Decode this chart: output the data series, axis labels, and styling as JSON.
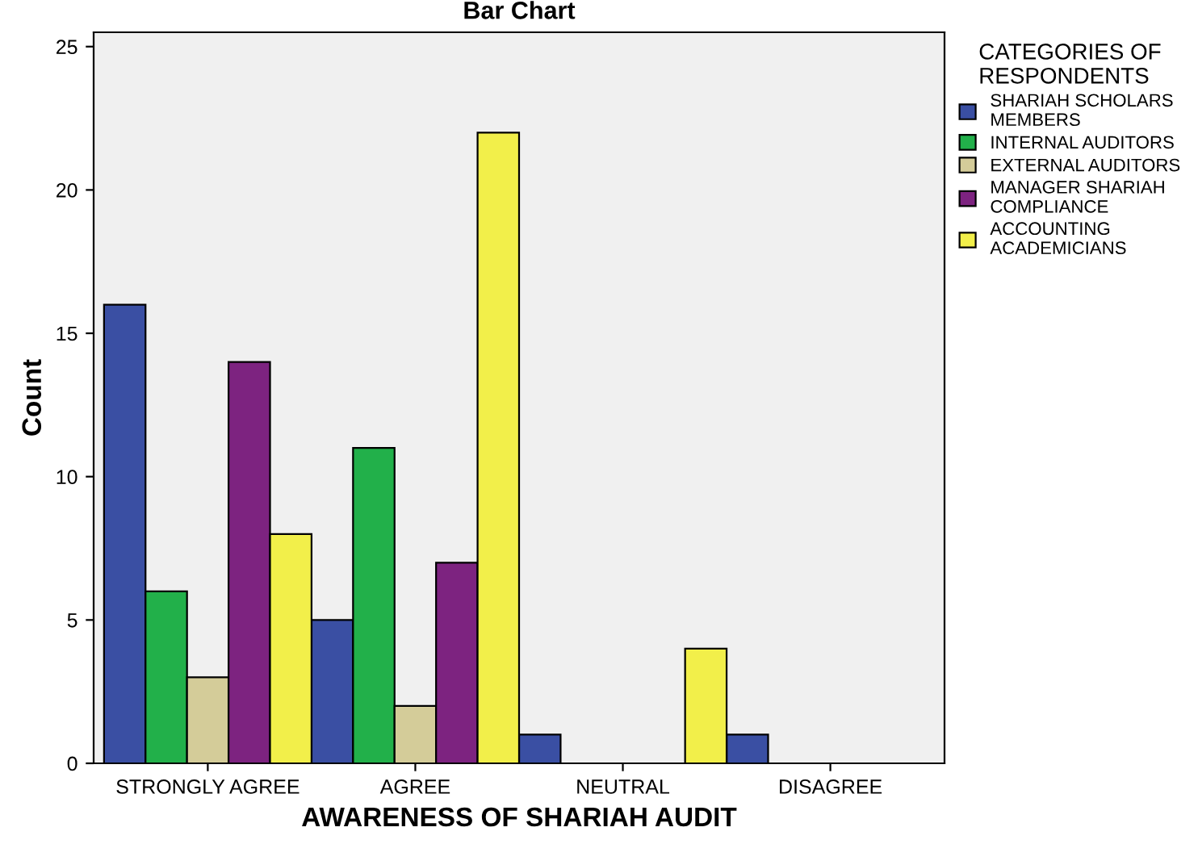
{
  "chart_data": {
    "type": "bar",
    "title": "Bar Chart",
    "xlabel": "AWARENESS OF SHARIAH AUDIT",
    "ylabel": "Count",
    "legend_title": "CATEGORIES OF\nRESPONDENTS",
    "categories": [
      "STRONGLY AGREE",
      "AGREE",
      "NEUTRAL",
      "DISAGREE"
    ],
    "series": [
      {
        "name": "SHARIAH SCHOLARS\nMEMBERS",
        "color": "#3a4fa3",
        "values": [
          16,
          5,
          1,
          1
        ]
      },
      {
        "name": "INTERNAL AUDITORS",
        "color": "#22b04a",
        "values": [
          6,
          11,
          null,
          null
        ]
      },
      {
        "name": "EXTERNAL AUDITORS",
        "color": "#d4cc99",
        "values": [
          3,
          2,
          null,
          null
        ]
      },
      {
        "name": "MANAGER SHARIAH\nCOMPLIANCE",
        "color": "#7d2380",
        "values": [
          14,
          7,
          null,
          null
        ]
      },
      {
        "name": "ACCOUNTING\nACADEMICIANS",
        "color": "#f2ef4a",
        "values": [
          8,
          22,
          4,
          null
        ]
      }
    ],
    "ylim": [
      0,
      25.5
    ],
    "yticks": [
      0,
      5,
      10,
      15,
      20,
      25
    ],
    "grid": false,
    "legend": "right"
  }
}
